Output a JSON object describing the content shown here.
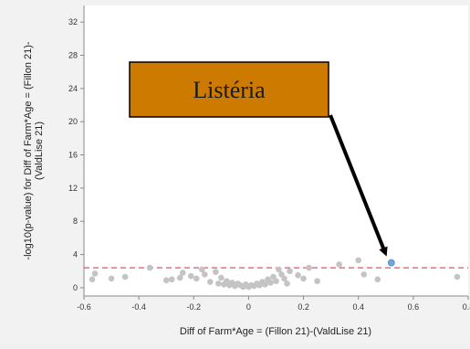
{
  "chart_data": {
    "type": "scatter",
    "xlabel": "Diff of Farm*Age = (Fillon 21)-(ValdLise 21)",
    "ylabel_lines": [
      "-log10(p-value) for Diff of Farm*Age = (Fillon 21)-",
      "(ValdLise 21)"
    ],
    "xlim": [
      -0.6,
      0.8
    ],
    "ylim": [
      -1,
      34
    ],
    "x_ticks": [
      -0.6,
      -0.4,
      -0.2,
      0,
      0.2,
      0.4,
      0.6,
      0.8
    ],
    "x_tick_labels": [
      "-0.6",
      "-0.4",
      "-0.2",
      "0",
      "0.2",
      "0.4",
      "0.6",
      "0.8"
    ],
    "y_ticks": [
      0,
      4,
      8,
      12,
      16,
      20,
      24,
      28,
      32
    ],
    "y_tick_labels": [
      "0",
      "4",
      "8",
      "12",
      "16",
      "20",
      "24",
      "28",
      "32"
    ],
    "threshold_line": {
      "y": 2.4,
      "color": "#e8505b",
      "style": "dashed"
    },
    "point_color": "#c4c4c4",
    "highlight_color": "#6fa8dc",
    "points": [
      {
        "x": -0.57,
        "y": 1.0
      },
      {
        "x": -0.56,
        "y": 1.7
      },
      {
        "x": -0.5,
        "y": 1.1
      },
      {
        "x": -0.45,
        "y": 1.3
      },
      {
        "x": -0.36,
        "y": 2.4
      },
      {
        "x": -0.3,
        "y": 0.9
      },
      {
        "x": -0.28,
        "y": 1.0
      },
      {
        "x": -0.25,
        "y": 1.2
      },
      {
        "x": -0.24,
        "y": 1.8
      },
      {
        "x": -0.21,
        "y": 1.4
      },
      {
        "x": -0.19,
        "y": 1.1
      },
      {
        "x": -0.17,
        "y": 2.2
      },
      {
        "x": -0.16,
        "y": 1.6
      },
      {
        "x": -0.14,
        "y": 0.7
      },
      {
        "x": -0.12,
        "y": 1.9
      },
      {
        "x": -0.11,
        "y": 0.5
      },
      {
        "x": -0.1,
        "y": 1.2
      },
      {
        "x": -0.09,
        "y": 0.4
      },
      {
        "x": -0.08,
        "y": 0.8
      },
      {
        "x": -0.07,
        "y": 0.3
      },
      {
        "x": -0.06,
        "y": 0.6
      },
      {
        "x": -0.05,
        "y": 0.2
      },
      {
        "x": -0.04,
        "y": 0.5
      },
      {
        "x": -0.03,
        "y": 0.3
      },
      {
        "x": -0.02,
        "y": 0.1
      },
      {
        "x": -0.01,
        "y": 0.4
      },
      {
        "x": 0.0,
        "y": 0.1
      },
      {
        "x": 0.01,
        "y": 0.3
      },
      {
        "x": 0.02,
        "y": 0.2
      },
      {
        "x": 0.03,
        "y": 0.5
      },
      {
        "x": 0.04,
        "y": 0.3
      },
      {
        "x": 0.05,
        "y": 0.7
      },
      {
        "x": 0.06,
        "y": 0.4
      },
      {
        "x": 0.07,
        "y": 1.0
      },
      {
        "x": 0.08,
        "y": 0.6
      },
      {
        "x": 0.09,
        "y": 1.3
      },
      {
        "x": 0.1,
        "y": 0.8
      },
      {
        "x": 0.11,
        "y": 2.2
      },
      {
        "x": 0.12,
        "y": 1.6
      },
      {
        "x": 0.13,
        "y": 1.1
      },
      {
        "x": 0.14,
        "y": 0.5
      },
      {
        "x": 0.15,
        "y": 2.0
      },
      {
        "x": 0.18,
        "y": 1.5
      },
      {
        "x": 0.2,
        "y": 1.1
      },
      {
        "x": 0.22,
        "y": 2.4
      },
      {
        "x": 0.25,
        "y": 0.8
      },
      {
        "x": 0.33,
        "y": 2.8
      },
      {
        "x": 0.4,
        "y": 3.3
      },
      {
        "x": 0.42,
        "y": 1.6
      },
      {
        "x": 0.47,
        "y": 1.0
      },
      {
        "x": 0.76,
        "y": 1.3
      }
    ],
    "highlight_points": [
      {
        "x": 0.52,
        "y": 3.0
      }
    ],
    "annotation": {
      "text": "Listéria",
      "box_color": "#cc7a00",
      "target": {
        "x": 0.51,
        "y": 3.4
      }
    }
  }
}
